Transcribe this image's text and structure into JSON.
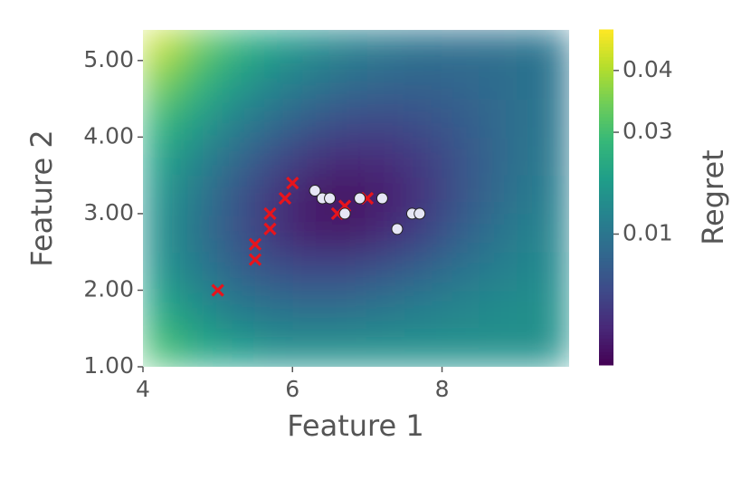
{
  "chart_data": {
    "type": "heatmap",
    "xlabel": "Feature 1",
    "ylabel": "Feature 2",
    "xlim": [
      4,
      9.7
    ],
    "ylim": [
      1,
      5.4
    ],
    "xticks": [
      4,
      6,
      8
    ],
    "yticks": [
      {
        "value": 1,
        "label": "1.00"
      },
      {
        "value": 2,
        "label": "2.00"
      },
      {
        "value": 3,
        "label": "3.00"
      },
      {
        "value": 4,
        "label": "4.00"
      },
      {
        "value": 5,
        "label": "5.00"
      }
    ],
    "colormap": "viridis",
    "xbins": [
      4,
      4.5,
      5,
      5.5,
      6,
      6.5,
      7,
      7.5,
      8,
      8.5,
      9,
      9.7
    ],
    "ybins": [
      1,
      1.5,
      2,
      2.5,
      3,
      3.5,
      4,
      4.5,
      5,
      5.4
    ],
    "z": [
      [
        0.0303,
        0.0244,
        0.0212,
        0.0179,
        0.0179,
        0.0179,
        0.0179,
        0.0179,
        0.0179,
        0.0179,
        0.0179
      ],
      [
        0.0244,
        0.0179,
        0.0122,
        0.0092,
        0.0076,
        0.0084,
        0.0107,
        0.013,
        0.0151,
        0.0165,
        0.0179
      ],
      [
        0.0192,
        0.0122,
        0.0043,
        -0.002,
        -0.005,
        -0.004,
        -0.0001,
        0.0043,
        0.0092,
        0.013,
        0.0158
      ],
      [
        0.0179,
        0.0092,
        -0.001,
        -0.0128,
        -0.0228,
        -0.0246,
        -0.0168,
        -0.0071,
        0.0026,
        0.0092,
        0.0144
      ],
      [
        0.0192,
        0.0107,
        -0.0001,
        -0.0116,
        -0.0246,
        -0.0285,
        -0.0228,
        -0.0128,
        -0.002,
        0.006,
        0.0122
      ],
      [
        0.0231,
        0.0151,
        0.006,
        -0.003,
        -0.0116,
        -0.0168,
        -0.0154,
        -0.0093,
        -0.001,
        0.0051,
        0.0107
      ],
      [
        0.0286,
        0.0218,
        0.0144,
        0.0076,
        0.0017,
        -0.003,
        -0.004,
        -0.002,
        0.0017,
        0.006,
        0.0099
      ],
      [
        0.0359,
        0.0286,
        0.0218,
        0.0158,
        0.0115,
        0.0076,
        0.0051,
        0.0043,
        0.0051,
        0.0068,
        0.0092
      ],
      [
        0.0421,
        0.0348,
        0.028,
        0.0225,
        0.0179,
        0.0144,
        0.0115,
        0.0092,
        0.0084,
        0.0084,
        0.0092
      ]
    ],
    "colorbar": {
      "label": "Regret",
      "clim": [
        -0.05,
        0.046
      ],
      "norm": "power",
      "gamma": 2,
      "ticks": [
        0.04,
        0.03,
        0.01
      ]
    },
    "series": [
      {
        "marker": "x",
        "color": "#e8141c",
        "x": [
          5,
          5.5,
          5.5,
          5.7,
          5.7,
          5.9,
          6,
          6.6,
          6.7,
          7
        ],
        "values": [
          2,
          2.4,
          2.6,
          2.8,
          3,
          3.2,
          3.4,
          3,
          3.1,
          3.2
        ]
      },
      {
        "marker": "circle",
        "color": "#e6e6f5",
        "x": [
          6.3,
          6.4,
          6.5,
          6.7,
          6.9,
          7.2,
          7.6,
          7.7,
          7.4
        ],
        "values": [
          3.3,
          3.2,
          3.2,
          3,
          3.2,
          3.2,
          3,
          3,
          2.8
        ]
      }
    ]
  }
}
